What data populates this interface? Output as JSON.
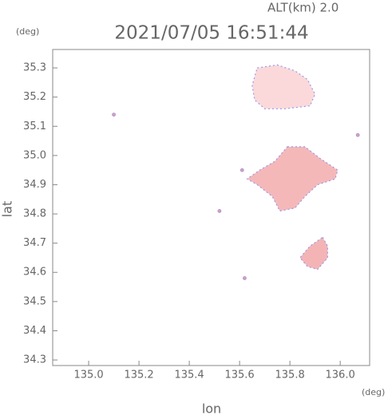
{
  "chart_data": {
    "type": "area_map",
    "title": "2021/07/05 16:51:44",
    "altitude_label": "ALT(km)  2.0",
    "y_unit": "(deg)",
    "x_unit": "(deg)",
    "x_label": "lon",
    "y_label": "lat",
    "xlim": [
      134.857,
      136.117
    ],
    "ylim": [
      34.281,
      35.363
    ],
    "xticks": [
      {
        "value": 135,
        "label": "135.0"
      },
      135.2,
      135.4,
      135.6,
      135.8,
      {
        "value": 136,
        "label": "136.0"
      }
    ],
    "yticks": [
      34.3,
      34.4,
      34.5,
      34.6,
      34.7,
      34.8,
      34.9,
      {
        "value": 35,
        "label": "35.0"
      },
      35.1,
      35.2,
      35.3
    ],
    "outline_color": "#9a98e6",
    "areas": [
      {
        "color": "#fbd9da",
        "lon": [
          135.67,
          135.75,
          135.82,
          135.87,
          135.9,
          135.88,
          135.78,
          135.7,
          135.66,
          135.65
        ],
        "lat": [
          35.3,
          35.31,
          35.29,
          35.26,
          35.21,
          35.17,
          35.16,
          35.16,
          35.19,
          35.24
        ]
      },
      {
        "color": "#f5b8b9",
        "lon": [
          135.79,
          135.86,
          135.92,
          135.99,
          135.98,
          135.91,
          135.86,
          135.82,
          135.76,
          135.73,
          135.67,
          135.63,
          135.68,
          135.74
        ],
        "lat": [
          35.03,
          35.03,
          34.99,
          34.95,
          34.92,
          34.9,
          34.86,
          34.82,
          34.81,
          34.86,
          34.9,
          34.92,
          34.95,
          34.98
        ]
      },
      {
        "color": "#f4b4b6",
        "lon": [
          135.93,
          135.95,
          135.95,
          135.91,
          135.87,
          135.84,
          135.88
        ],
        "lat": [
          34.72,
          34.69,
          34.65,
          34.61,
          34.62,
          34.65,
          34.69
        ]
      }
    ],
    "points": {
      "color": "#e99aa6",
      "lon": [
        135.1,
        135.52,
        135.62,
        136.07,
        135.61
      ],
      "lat": [
        35.14,
        34.81,
        34.58,
        35.07,
        34.95
      ]
    }
  }
}
